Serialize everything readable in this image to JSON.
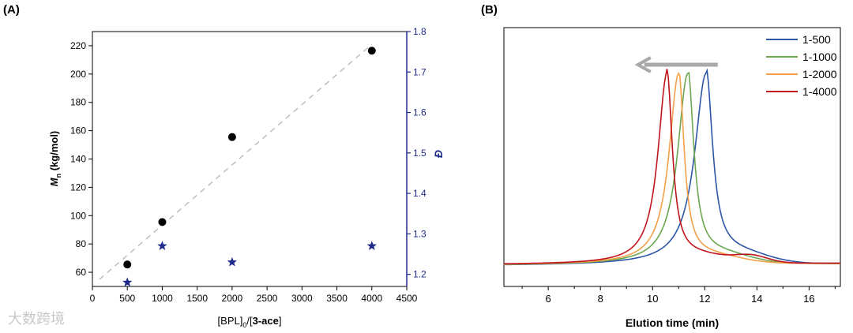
{
  "panels": {
    "a_label": "(A)",
    "b_label": "(B)"
  },
  "watermark": "大数跨境",
  "colors": {
    "black": "#000000",
    "navy": "#1f2a8a",
    "trend": "#bdbdbd",
    "arrow": "#a9a9a9"
  },
  "chart_data": [
    {
      "type": "scatter",
      "panel": "(A)",
      "xlabel": "[BPL]0/[3-ace]",
      "ylabel": "Mn (kg/mol)",
      "y2label": "Đ",
      "xlim": [
        0,
        4500
      ],
      "ylim": [
        50,
        230
      ],
      "y2lim": [
        1.17,
        1.8
      ],
      "xticks": [
        0,
        500,
        1000,
        1500,
        2000,
        2500,
        3000,
        3500,
        4000,
        4500
      ],
      "yticks": [
        60,
        80,
        100,
        120,
        140,
        160,
        180,
        200,
        220
      ],
      "y2ticks": [
        1.2,
        1.3,
        1.4,
        1.5,
        1.6,
        1.7,
        1.8
      ],
      "series": [
        {
          "axis": "left",
          "marker": "circle",
          "color": "#000000",
          "x": [
            500,
            1000,
            2000,
            4000
          ],
          "y": [
            65.5,
            95.5,
            155.5,
            216.5
          ]
        },
        {
          "axis": "right",
          "marker": "star",
          "color": "#1f2a8a",
          "x": [
            500,
            1000,
            2000,
            4000
          ],
          "y": [
            1.18,
            1.27,
            1.23,
            1.27
          ]
        }
      ],
      "trendline": {
        "style": "dashed",
        "color": "#bdbdbd",
        "x": [
          100,
          4000
        ],
        "y": [
          55,
          221
        ]
      }
    },
    {
      "type": "line",
      "panel": "(B)",
      "xlabel": "Elution time (min)",
      "xlim": [
        4.3,
        17.2
      ],
      "xticks": [
        6,
        8,
        10,
        12,
        14,
        16
      ],
      "yaxis": "none",
      "legend": "top-right",
      "series": [
        {
          "name": "1-500",
          "color": "#2e56a6",
          "peak": 12.05,
          "wl": 0.95,
          "wr": 0.55,
          "shoulder": 0.0,
          "tail": 0.055
        },
        {
          "name": "1-1000",
          "color": "#6aa84f",
          "peak": 11.35,
          "wl": 0.85,
          "wr": 0.5,
          "shoulder": 0.0,
          "tail": 0.05
        },
        {
          "name": "1-2000",
          "color": "#f5a04a",
          "peak": 11.0,
          "wl": 0.8,
          "wr": 0.45,
          "shoulder": 0.0,
          "tail": 0.04
        },
        {
          "name": "1-4000",
          "color": "#c0151d",
          "peak": 10.55,
          "wl": 0.75,
          "wr": 0.45,
          "shoulder": 0.035,
          "tail": 0.04
        }
      ],
      "annotation": {
        "type": "arrow",
        "direction": "left",
        "from_x": 12.5,
        "to_x": 9.5,
        "color": "#a9a9a9"
      }
    }
  ]
}
